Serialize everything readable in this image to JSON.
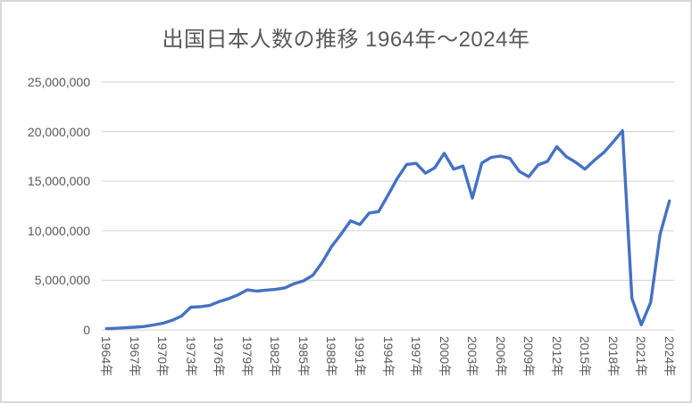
{
  "chart_data": {
    "type": "line",
    "title": "出国日本人数の推移 1964年～2024年",
    "xlabel": "",
    "ylabel": "",
    "ylim": [
      0,
      25000000
    ],
    "y_tick_interval": 5000000,
    "y_tick_labels": [
      "0",
      "5,000,000",
      "10,000,000",
      "15,000,000",
      "20,000,000",
      "25,000,000"
    ],
    "x_tick_step": 3,
    "x_tick_labels": [
      "1964年",
      "1967年",
      "1970年",
      "1973年",
      "1976年",
      "1979年",
      "1982年",
      "1985年",
      "1988年",
      "1991年",
      "1994年",
      "1997年",
      "2000年",
      "2003年",
      "2006年",
      "2009年",
      "2012年",
      "2015年",
      "2018年",
      "2021年",
      "2024年"
    ],
    "grid": true,
    "legend": "none",
    "years": [
      1964,
      1965,
      1966,
      1967,
      1968,
      1969,
      1970,
      1971,
      1972,
      1973,
      1974,
      1975,
      1976,
      1977,
      1978,
      1979,
      1980,
      1981,
      1982,
      1983,
      1984,
      1985,
      1986,
      1987,
      1988,
      1989,
      1990,
      1991,
      1992,
      1993,
      1994,
      1995,
      1996,
      1997,
      1998,
      1999,
      2000,
      2001,
      2002,
      2003,
      2004,
      2005,
      2006,
      2007,
      2008,
      2009,
      2010,
      2011,
      2012,
      2013,
      2014,
      2015,
      2016,
      2017,
      2018,
      2019,
      2020,
      2021,
      2022,
      2023,
      2024
    ],
    "values": [
      127749,
      158827,
      212409,
      267538,
      343542,
      492880,
      663467,
      961135,
      1392045,
      2288966,
      2335530,
      2466326,
      2852584,
      3151431,
      3525110,
      4038298,
      3909333,
      4006388,
      4086138,
      4232246,
      4658833,
      4948366,
      5516193,
      6829338,
      8426867,
      9662752,
      10997431,
      10633777,
      11790699,
      11933620,
      13578934,
      15298125,
      16694769,
      16802750,
      15806218,
      16357572,
      17818590,
      16215657,
      16522804,
      13296330,
      16831112,
      17403565,
      17534565,
      17294935,
      15987250,
      15445684,
      16637224,
      16994200,
      18490657,
      17472748,
      16903388,
      16213789,
      17116420,
      17889292,
      18954031,
      20080669,
      3174219,
      512244,
      2771770,
      9624938,
      13006000
    ]
  },
  "colors": {
    "line": "#4472C4",
    "grid": "#D9D9D9",
    "axis": "#D9D9D9",
    "text": "#595959",
    "border": "#D9D9D9",
    "background": "#FFFFFF"
  }
}
